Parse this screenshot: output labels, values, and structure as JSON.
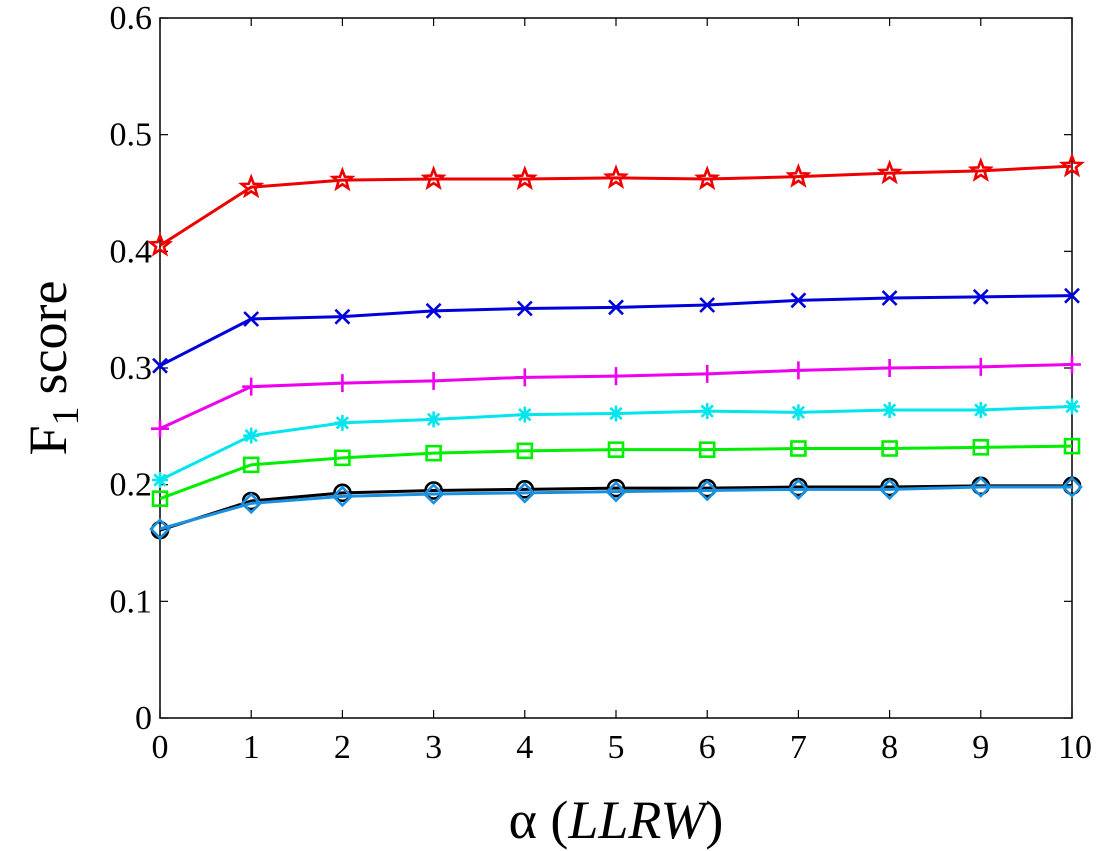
{
  "chart_data": {
    "type": "line",
    "title": "",
    "xlabel": "α (LLRW)",
    "xlabel_symbol": "α",
    "xlabel_paren_open": "(",
    "xlabel_italic": "LLRW",
    "xlabel_paren_close": ")",
    "ylabel": "F1 score",
    "ylabel_main": "F",
    "ylabel_sub": "1",
    "ylabel_rest": "score",
    "xlim": [
      0,
      10
    ],
    "ylim": [
      0,
      0.6
    ],
    "x": [
      0,
      1,
      2,
      3,
      4,
      5,
      6,
      7,
      8,
      9,
      10
    ],
    "x_tick_labels": [
      "0",
      "1",
      "2",
      "3",
      "4",
      "5",
      "6",
      "7",
      "8",
      "9",
      "10"
    ],
    "y_ticks": [
      0,
      0.1,
      0.2,
      0.3,
      0.4,
      0.5,
      0.6
    ],
    "y_tick_labels": [
      "0",
      "0.1",
      "0.2",
      "0.3",
      "0.4",
      "0.5",
      "0.6"
    ],
    "grid": false,
    "legend": "none",
    "series": [
      {
        "name": "black-circle",
        "color": "#000000",
        "marker": "circle",
        "values": [
          0.161,
          0.186,
          0.193,
          0.195,
          0.196,
          0.197,
          0.197,
          0.198,
          0.198,
          0.199,
          0.199
        ]
      },
      {
        "name": "blue-diamond",
        "color": "#1a8fe0",
        "marker": "diamond",
        "values": [
          0.162,
          0.184,
          0.19,
          0.192,
          0.193,
          0.194,
          0.195,
          0.196,
          0.196,
          0.198,
          0.198
        ]
      },
      {
        "name": "green-square",
        "color": "#00ee00",
        "marker": "square",
        "values": [
          0.188,
          0.217,
          0.223,
          0.227,
          0.229,
          0.23,
          0.23,
          0.231,
          0.231,
          0.232,
          0.233
        ]
      },
      {
        "name": "cyan-asterisk",
        "color": "#00e5ee",
        "marker": "asterisk",
        "values": [
          0.204,
          0.242,
          0.253,
          0.256,
          0.26,
          0.261,
          0.263,
          0.262,
          0.264,
          0.264,
          0.267
        ]
      },
      {
        "name": "magenta-plus",
        "color": "#ee00ee",
        "marker": "plus",
        "values": [
          0.248,
          0.284,
          0.287,
          0.289,
          0.292,
          0.293,
          0.295,
          0.298,
          0.3,
          0.301,
          0.303
        ]
      },
      {
        "name": "blue-cross",
        "color": "#0000dd",
        "marker": "cross",
        "values": [
          0.302,
          0.342,
          0.344,
          0.349,
          0.351,
          0.352,
          0.354,
          0.358,
          0.36,
          0.361,
          0.362
        ]
      },
      {
        "name": "red-star",
        "color": "#ee0000",
        "marker": "star",
        "values": [
          0.405,
          0.455,
          0.461,
          0.462,
          0.462,
          0.463,
          0.462,
          0.464,
          0.467,
          0.469,
          0.473
        ]
      }
    ]
  }
}
